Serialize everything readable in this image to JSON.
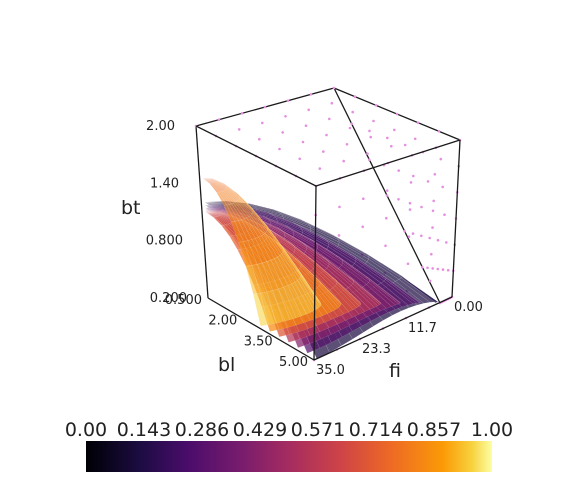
{
  "chart_data": {
    "type": "surface3d",
    "axes": {
      "x": {
        "label": "fi",
        "range": [
          0,
          35
        ],
        "ticks": [
          "0.00",
          "11.7",
          "23.3",
          "35.0"
        ]
      },
      "y": {
        "label": "bl",
        "range": [
          0.5,
          5.0
        ],
        "ticks": [
          "0.500",
          "2.00",
          "3.50",
          "5.00"
        ]
      },
      "z": {
        "label": "bt",
        "range": [
          0.2,
          2.0
        ],
        "ticks": [
          "0.200",
          "0.800",
          "1.40",
          "2.00"
        ]
      }
    },
    "colorbar": {
      "colormap": "inferno",
      "range": [
        0,
        1
      ],
      "ticks": [
        "0.00",
        "0.143",
        "0.286",
        "0.429",
        "0.571",
        "0.714",
        "0.857",
        "1.00"
      ]
    },
    "surfaces": [
      {
        "level": 0.14,
        "bt_top": 1.2
      },
      {
        "level": 0.29,
        "bt_top": 1.17
      },
      {
        "level": 0.43,
        "bt_top": 1.14
      },
      {
        "level": 0.57,
        "bt_top": 1.12
      },
      {
        "level": 0.71,
        "bt_top": 1.11
      },
      {
        "level": 0.86,
        "bt_top": 1.1
      },
      {
        "level": 0.98,
        "bt_top": 1.45
      }
    ],
    "sample_points": {
      "color": "#e58fe0",
      "grid": [
        7,
        7,
        7
      ]
    },
    "grid": false,
    "box": true
  }
}
